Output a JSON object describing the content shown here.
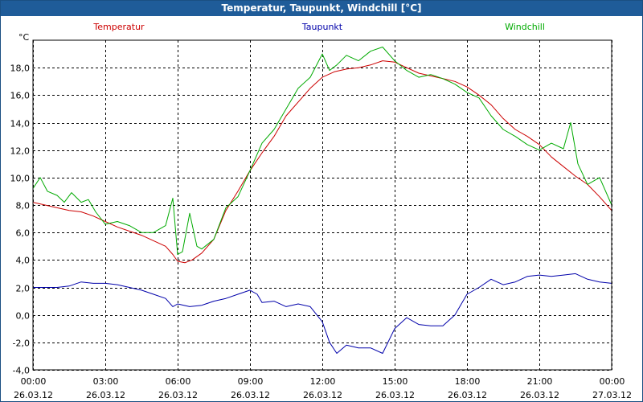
{
  "window": {
    "title": "Temperatur, Taupunkt, Windchill [°C]"
  },
  "chart_data": {
    "type": "line",
    "title": "Temperatur, Taupunkt, Windchill [°C]",
    "ylabel": "°C",
    "ylim": [
      -4,
      20
    ],
    "yticks": [
      -4,
      -2,
      0,
      2,
      4,
      6,
      8,
      10,
      12,
      14,
      16,
      18
    ],
    "ytick_labels": [
      "-4,0",
      "-2,0",
      "0,0",
      "2,0",
      "4,0",
      "6,0",
      "8,0",
      "10,0",
      "12,0",
      "14,0",
      "16,0",
      "18,0"
    ],
    "xlim": [
      0,
      24
    ],
    "x_tick_times": [
      "00:00",
      "03:00",
      "06:00",
      "09:00",
      "12:00",
      "15:00",
      "18:00",
      "21:00",
      "00:00"
    ],
    "x_tick_dates": [
      "26.03.12",
      "26.03.12",
      "26.03.12",
      "26.03.12",
      "26.03.12",
      "26.03.12",
      "26.03.12",
      "26.03.12",
      "27.03.12"
    ],
    "grid": true,
    "legend_position": "top",
    "series": [
      {
        "name": "Temperatur",
        "color": "#cc0000",
        "points": [
          [
            0,
            8.2
          ],
          [
            0.5,
            8.0
          ],
          [
            1,
            7.8
          ],
          [
            1.5,
            7.6
          ],
          [
            2,
            7.5
          ],
          [
            2.5,
            7.2
          ],
          [
            3,
            6.8
          ],
          [
            3.5,
            6.4
          ],
          [
            4,
            6.1
          ],
          [
            4.5,
            5.8
          ],
          [
            5,
            5.4
          ],
          [
            5.5,
            5.0
          ],
          [
            5.8,
            4.4
          ],
          [
            6,
            3.9
          ],
          [
            6.3,
            3.8
          ],
          [
            6.6,
            4.0
          ],
          [
            7,
            4.5
          ],
          [
            7.5,
            5.5
          ],
          [
            8,
            7.6
          ],
          [
            8.5,
            9.0
          ],
          [
            9,
            10.5
          ],
          [
            9.5,
            11.8
          ],
          [
            10,
            13.0
          ],
          [
            10.5,
            14.5
          ],
          [
            11,
            15.5
          ],
          [
            11.5,
            16.5
          ],
          [
            12,
            17.3
          ],
          [
            12.5,
            17.7
          ],
          [
            13,
            17.9
          ],
          [
            13.5,
            18.0
          ],
          [
            14,
            18.2
          ],
          [
            14.5,
            18.5
          ],
          [
            15,
            18.4
          ],
          [
            15.5,
            18.0
          ],
          [
            16,
            17.6
          ],
          [
            16.5,
            17.4
          ],
          [
            17,
            17.2
          ],
          [
            17.5,
            17.0
          ],
          [
            18,
            16.6
          ],
          [
            18.5,
            16.0
          ],
          [
            19,
            15.3
          ],
          [
            19.5,
            14.3
          ],
          [
            20,
            13.5
          ],
          [
            20.5,
            13.0
          ],
          [
            21,
            12.4
          ],
          [
            21.5,
            11.5
          ],
          [
            22,
            10.8
          ],
          [
            22.5,
            10.1
          ],
          [
            23,
            9.5
          ],
          [
            23.5,
            8.6
          ],
          [
            24,
            7.6
          ]
        ]
      },
      {
        "name": "Taupunkt",
        "color": "#0000aa",
        "points": [
          [
            0,
            2.0
          ],
          [
            0.5,
            2.0
          ],
          [
            1,
            2.0
          ],
          [
            1.5,
            2.1
          ],
          [
            2,
            2.4
          ],
          [
            2.5,
            2.3
          ],
          [
            3,
            2.3
          ],
          [
            3.5,
            2.2
          ],
          [
            4,
            2.0
          ],
          [
            4.5,
            1.8
          ],
          [
            5,
            1.5
          ],
          [
            5.5,
            1.2
          ],
          [
            5.8,
            0.6
          ],
          [
            6,
            0.8
          ],
          [
            6.5,
            0.6
          ],
          [
            7,
            0.7
          ],
          [
            7.5,
            1.0
          ],
          [
            8,
            1.2
          ],
          [
            8.5,
            1.5
          ],
          [
            9,
            1.8
          ],
          [
            9.3,
            1.5
          ],
          [
            9.5,
            0.9
          ],
          [
            10,
            1.0
          ],
          [
            10.5,
            0.6
          ],
          [
            11,
            0.8
          ],
          [
            11.5,
            0.6
          ],
          [
            12,
            -0.5
          ],
          [
            12.3,
            -2.0
          ],
          [
            12.6,
            -2.8
          ],
          [
            13,
            -2.2
          ],
          [
            13.5,
            -2.4
          ],
          [
            14,
            -2.4
          ],
          [
            14.5,
            -2.8
          ],
          [
            15,
            -1.0
          ],
          [
            15.5,
            -0.2
          ],
          [
            16,
            -0.7
          ],
          [
            16.5,
            -0.8
          ],
          [
            17,
            -0.8
          ],
          [
            17.5,
            0.0
          ],
          [
            18,
            1.5
          ],
          [
            18.5,
            2.0
          ],
          [
            19,
            2.6
          ],
          [
            19.5,
            2.2
          ],
          [
            20,
            2.4
          ],
          [
            20.5,
            2.8
          ],
          [
            21,
            2.9
          ],
          [
            21.5,
            2.8
          ],
          [
            22,
            2.9
          ],
          [
            22.5,
            3.0
          ],
          [
            23,
            2.6
          ],
          [
            23.5,
            2.4
          ],
          [
            24,
            2.3
          ]
        ]
      },
      {
        "name": "Windchill",
        "color": "#00aa00",
        "points": [
          [
            0,
            9.2
          ],
          [
            0.3,
            10.0
          ],
          [
            0.6,
            9.0
          ],
          [
            1,
            8.7
          ],
          [
            1.3,
            8.2
          ],
          [
            1.6,
            8.9
          ],
          [
            2,
            8.2
          ],
          [
            2.3,
            8.4
          ],
          [
            2.6,
            7.5
          ],
          [
            3,
            6.6
          ],
          [
            3.5,
            6.8
          ],
          [
            4,
            6.5
          ],
          [
            4.5,
            6.0
          ],
          [
            5,
            6.0
          ],
          [
            5.5,
            6.5
          ],
          [
            5.8,
            8.5
          ],
          [
            6,
            4.4
          ],
          [
            6.2,
            4.6
          ],
          [
            6.5,
            7.4
          ],
          [
            6.8,
            5.0
          ],
          [
            7,
            4.8
          ],
          [
            7.5,
            5.5
          ],
          [
            8,
            7.8
          ],
          [
            8.5,
            8.6
          ],
          [
            9,
            10.5
          ],
          [
            9.5,
            12.5
          ],
          [
            10,
            13.5
          ],
          [
            10.5,
            15.0
          ],
          [
            11,
            16.5
          ],
          [
            11.5,
            17.3
          ],
          [
            12,
            19.0
          ],
          [
            12.3,
            17.8
          ],
          [
            12.6,
            18.2
          ],
          [
            13,
            18.9
          ],
          [
            13.5,
            18.5
          ],
          [
            14,
            19.2
          ],
          [
            14.5,
            19.5
          ],
          [
            15,
            18.5
          ],
          [
            15.5,
            17.8
          ],
          [
            16,
            17.3
          ],
          [
            16.5,
            17.5
          ],
          [
            17,
            17.2
          ],
          [
            17.5,
            16.8
          ],
          [
            18,
            16.2
          ],
          [
            18.5,
            15.8
          ],
          [
            19,
            14.5
          ],
          [
            19.5,
            13.5
          ],
          [
            20,
            13.0
          ],
          [
            20.5,
            12.4
          ],
          [
            21,
            12.0
          ],
          [
            21.5,
            12.5
          ],
          [
            22,
            12.1
          ],
          [
            22.3,
            14.0
          ],
          [
            22.6,
            11.0
          ],
          [
            23,
            9.5
          ],
          [
            23.5,
            10.0
          ],
          [
            24,
            8.0
          ]
        ]
      }
    ]
  }
}
